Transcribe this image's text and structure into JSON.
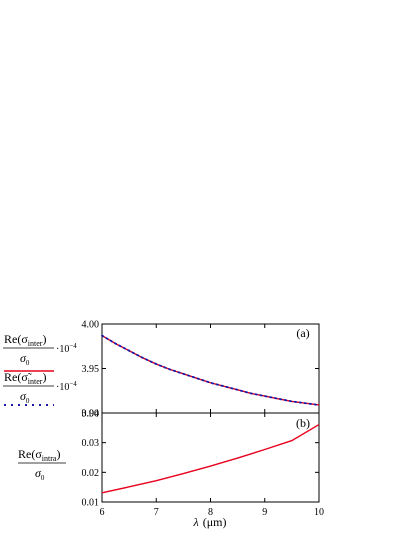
{
  "chart_data": [
    {
      "panel": "a",
      "type": "line",
      "panel_label": "(a)",
      "xlim": [
        6,
        10
      ],
      "ylim": [
        3.9,
        4.0
      ],
      "xticks": [
        6,
        7,
        8,
        9,
        10
      ],
      "yticks": [
        3.9,
        3.95,
        4.0
      ],
      "ytick_labels": [
        "3.90",
        "3.95",
        "4.00"
      ],
      "show_x_tick_labels": false,
      "grid": false,
      "legend": {
        "placement": "left-outside",
        "entries": [
          {
            "numerator": "Re(σ",
            "subscript": "inter",
            "close": ")",
            "denominator": "σ",
            "den_subscript": "0",
            "scale": "·10",
            "exponent": "−4",
            "style": "solid",
            "color": "#e8001c"
          },
          {
            "numerator": "Re(σ̃",
            "subscript": "inter",
            "close": ")",
            "denominator": "σ",
            "den_subscript": "0",
            "scale": "·10",
            "exponent": "−4",
            "style": "dotted",
            "color": "#1a1aa6"
          }
        ]
      },
      "series": [
        {
          "style": "solid",
          "color": "#e8001c",
          "x": [
            6,
            6.25,
            6.5,
            6.75,
            7,
            7.25,
            7.5,
            7.75,
            8,
            8.25,
            8.5,
            8.75,
            9,
            9.25,
            9.5,
            9.75,
            10
          ],
          "y": [
            3.987,
            3.978,
            3.97,
            3.962,
            3.955,
            3.949,
            3.944,
            3.939,
            3.934,
            3.93,
            3.926,
            3.922,
            3.919,
            3.916,
            3.913,
            3.911,
            3.909
          ]
        },
        {
          "style": "dotted",
          "color": "#1a1aa6",
          "x": [
            6,
            6.25,
            6.5,
            6.75,
            7,
            7.25,
            7.5,
            7.75,
            8,
            8.25,
            8.5,
            8.75,
            9,
            9.25,
            9.5,
            9.75,
            10
          ],
          "y": [
            3.987,
            3.978,
            3.97,
            3.962,
            3.955,
            3.949,
            3.944,
            3.939,
            3.934,
            3.93,
            3.926,
            3.922,
            3.919,
            3.916,
            3.913,
            3.911,
            3.909
          ]
        }
      ]
    },
    {
      "panel": "b",
      "type": "line",
      "panel_label": "(b)",
      "xlim": [
        6,
        10
      ],
      "ylim": [
        0.01,
        0.04
      ],
      "xticks": [
        6,
        7,
        8,
        9,
        10
      ],
      "xtick_labels": [
        "6",
        "7",
        "8",
        "9",
        "10"
      ],
      "yticks": [
        0.01,
        0.02,
        0.03,
        0.04
      ],
      "ytick_labels": [
        "0.01",
        "0.02",
        "0.03",
        "0.04"
      ],
      "xlabel_symbol": "λ",
      "xlabel_unit": "(μm)",
      "grid": false,
      "ylabel": {
        "numerator": "Re(σ",
        "subscript": "intra",
        "close": ")",
        "denominator": "σ",
        "den_subscript": "0"
      },
      "series": [
        {
          "style": "solid",
          "color": "#e8001c",
          "x": [
            6,
            6.5,
            7,
            7.5,
            8,
            8.5,
            9,
            9.5,
            10
          ],
          "y": [
            0.0131,
            0.0151,
            0.0172,
            0.0196,
            0.0221,
            0.0248,
            0.0277,
            0.0307,
            0.0361
          ]
        }
      ]
    }
  ]
}
